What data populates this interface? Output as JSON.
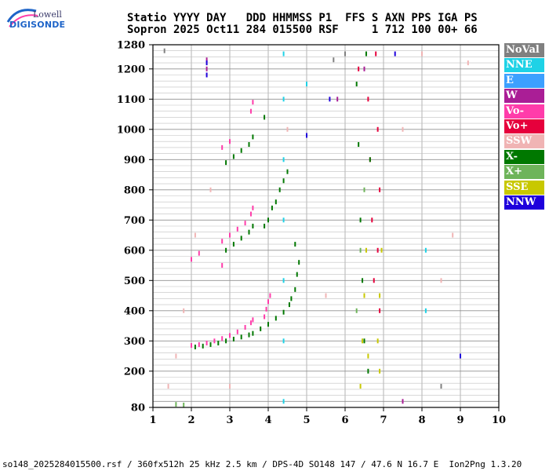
{
  "logo": {
    "line1": "Lowell",
    "line2": "DIGISONDE"
  },
  "header": {
    "line1": "Statio YYYY DAY   DDD HHMMSS P1  FFS S AXN PPS IGA PS",
    "line2": "Sopron 2025 Oct11 284 015500 RSF     1 712 100 00+ 66"
  },
  "legend": [
    {
      "label": "NoVal",
      "color": "#808080"
    },
    {
      "label": "NNE",
      "color": "#1ed2e6"
    },
    {
      "label": "E",
      "color": "#3ca0ff"
    },
    {
      "label": "W",
      "color": "#aa1e96"
    },
    {
      "label": "Vo-",
      "color": "#ff3caa"
    },
    {
      "label": "Vo+",
      "color": "#e6003c"
    },
    {
      "label": "SSW",
      "color": "#f0b4b4"
    },
    {
      "label": "X-",
      "color": "#007800"
    },
    {
      "label": "X+",
      "color": "#6eb45a"
    },
    {
      "label": "SSE",
      "color": "#c8c800"
    },
    {
      "label": "NNW",
      "color": "#1e00dc"
    }
  ],
  "footer": "so148_2025284015500.rsf / 360fx512h 25 kHz 2.5 km / DPS-4D SO148 147 / 47.6 N 16.7 E  Ion2Png 1.3.20",
  "chart_data": {
    "type": "scatter",
    "title": "",
    "xlabel": "",
    "ylabel": "",
    "xlim": [
      1,
      10
    ],
    "ylim": [
      80,
      1280
    ],
    "x_ticks": [
      "1",
      "2",
      "3",
      "4",
      "5",
      "6",
      "7",
      "8",
      "9",
      "10"
    ],
    "y_ticks": [
      "80",
      "200",
      "300",
      "400",
      "500",
      "600",
      "700",
      "800",
      "900",
      "1000",
      "1100",
      "1200",
      "1280"
    ],
    "grid": true,
    "series": [
      {
        "name": "Vo-",
        "color": "#ff3caa",
        "points": [
          [
            2.0,
            285
          ],
          [
            2.2,
            288
          ],
          [
            2.4,
            293
          ],
          [
            2.6,
            300
          ],
          [
            2.8,
            308
          ],
          [
            3.0,
            318
          ],
          [
            3.2,
            330
          ],
          [
            3.4,
            345
          ],
          [
            3.55,
            360
          ],
          [
            3.6,
            370
          ],
          [
            2.8,
            630
          ],
          [
            3.0,
            650
          ],
          [
            3.2,
            670
          ],
          [
            3.4,
            690
          ],
          [
            3.55,
            720
          ],
          [
            3.6,
            740
          ],
          [
            2.0,
            570
          ],
          [
            2.2,
            590
          ],
          [
            3.9,
            380
          ],
          [
            3.95,
            405
          ],
          [
            4.0,
            430
          ],
          [
            4.05,
            450
          ],
          [
            2.8,
            940
          ],
          [
            3.0,
            960
          ],
          [
            2.8,
            550
          ],
          [
            3.55,
            1060
          ],
          [
            3.6,
            1090
          ]
        ]
      },
      {
        "name": "Vo+",
        "color": "#e6003c",
        "points": [
          [
            6.6,
            1100
          ],
          [
            6.65,
            900
          ],
          [
            6.7,
            700
          ],
          [
            6.75,
            500
          ],
          [
            6.8,
            1250
          ],
          [
            6.85,
            1000
          ],
          [
            6.9,
            800
          ],
          [
            6.85,
            600
          ],
          [
            6.9,
            400
          ],
          [
            6.35,
            1200
          ]
        ]
      },
      {
        "name": "X-",
        "color": "#007800",
        "points": [
          [
            2.1,
            280
          ],
          [
            2.3,
            283
          ],
          [
            2.5,
            288
          ],
          [
            2.7,
            293
          ],
          [
            2.9,
            300
          ],
          [
            3.1,
            306
          ],
          [
            3.3,
            313
          ],
          [
            3.5,
            320
          ],
          [
            3.6,
            325
          ],
          [
            3.8,
            340
          ],
          [
            4.0,
            355
          ],
          [
            4.2,
            375
          ],
          [
            4.4,
            395
          ],
          [
            4.55,
            420
          ],
          [
            4.6,
            440
          ],
          [
            2.9,
            600
          ],
          [
            3.1,
            620
          ],
          [
            3.3,
            640
          ],
          [
            3.5,
            660
          ],
          [
            3.6,
            680
          ],
          [
            3.9,
            680
          ],
          [
            4.0,
            700
          ],
          [
            4.1,
            740
          ],
          [
            4.2,
            760
          ],
          [
            4.3,
            800
          ],
          [
            4.4,
            830
          ],
          [
            4.5,
            860
          ],
          [
            2.9,
            890
          ],
          [
            3.1,
            910
          ],
          [
            3.3,
            930
          ],
          [
            3.5,
            950
          ],
          [
            3.6,
            975
          ],
          [
            3.9,
            1040
          ],
          [
            4.7,
            470
          ],
          [
            4.75,
            520
          ],
          [
            4.8,
            560
          ],
          [
            4.7,
            620
          ],
          [
            6.3,
            1150
          ],
          [
            6.35,
            950
          ],
          [
            6.4,
            700
          ],
          [
            6.45,
            500
          ],
          [
            6.5,
            300
          ],
          [
            6.55,
            1250
          ],
          [
            6.6,
            200
          ],
          [
            6.65,
            900
          ]
        ]
      },
      {
        "name": "X+",
        "color": "#6eb45a",
        "points": [
          [
            1.6,
            90
          ],
          [
            1.8,
            88
          ],
          [
            6.3,
            400
          ],
          [
            6.4,
            600
          ],
          [
            6.5,
            800
          ]
        ]
      },
      {
        "name": "SSE",
        "color": "#c8c800",
        "points": [
          [
            6.4,
            150
          ],
          [
            6.45,
            300
          ],
          [
            6.5,
            450
          ],
          [
            6.55,
            600
          ],
          [
            6.6,
            250
          ],
          [
            6.85,
            300
          ],
          [
            6.9,
            450
          ],
          [
            6.95,
            600
          ],
          [
            6.9,
            200
          ]
        ]
      },
      {
        "name": "NNE",
        "color": "#1ed2e6",
        "points": [
          [
            4.4,
            100
          ],
          [
            4.4,
            300
          ],
          [
            4.4,
            500
          ],
          [
            4.4,
            700
          ],
          [
            4.4,
            900
          ],
          [
            4.4,
            1100
          ],
          [
            4.4,
            1250
          ],
          [
            8.1,
            400
          ],
          [
            8.1,
            600
          ],
          [
            5.0,
            1150
          ]
        ]
      },
      {
        "name": "W",
        "color": "#aa1e96",
        "points": [
          [
            2.4,
            1200
          ],
          [
            2.4,
            1230
          ],
          [
            6.5,
            1200
          ],
          [
            7.5,
            100
          ],
          [
            5.8,
            1100
          ]
        ]
      },
      {
        "name": "SSW",
        "color": "#f0b4b4",
        "points": [
          [
            1.4,
            150
          ],
          [
            1.6,
            250
          ],
          [
            1.8,
            400
          ],
          [
            2.1,
            650
          ],
          [
            2.5,
            800
          ],
          [
            3.0,
            150
          ],
          [
            4.5,
            1000
          ],
          [
            5.5,
            450
          ],
          [
            7.5,
            1000
          ],
          [
            8.0,
            1250
          ],
          [
            8.5,
            500
          ],
          [
            8.8,
            650
          ],
          [
            9.2,
            1220
          ]
        ]
      },
      {
        "name": "NNW",
        "color": "#1e00dc",
        "points": [
          [
            2.4,
            1180
          ],
          [
            2.4,
            1220
          ],
          [
            5.0,
            980
          ],
          [
            5.6,
            1100
          ],
          [
            9.0,
            250
          ],
          [
            7.3,
            1250
          ]
        ]
      },
      {
        "name": "NoVal",
        "color": "#808080",
        "points": [
          [
            5.7,
            1230
          ],
          [
            6.0,
            1250
          ],
          [
            8.5,
            150
          ],
          [
            1.3,
            1260
          ]
        ]
      }
    ]
  }
}
